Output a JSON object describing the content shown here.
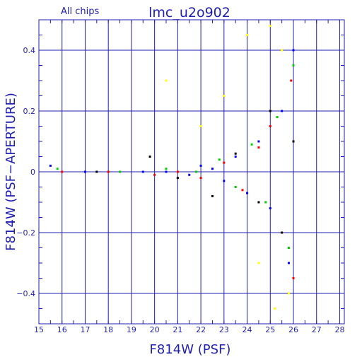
{
  "header": {
    "left_label": "All chips",
    "title": "lmc_u2o902"
  },
  "chart_data": {
    "type": "scatter",
    "title": "lmc_u2o902",
    "subtitle": "All chips",
    "xlabel": "F814W (PSF)",
    "ylabel": "F814W (PSF−APERTURE)",
    "xlim": [
      15,
      28.2
    ],
    "ylim": [
      -0.5,
      0.5
    ],
    "x_ticks": [
      15,
      16,
      17,
      18,
      19,
      20,
      21,
      22,
      23,
      24,
      25,
      26,
      27,
      28
    ],
    "y_ticks": [
      0.4,
      0.2,
      0,
      -0.2,
      -0.4
    ],
    "y_tick_labels": [
      "0.4",
      "0.2",
      "0",
      "−0.2",
      "−0.4"
    ],
    "grid": true,
    "colors": {
      "axis": "#1f1fb0",
      "series": [
        "#0000ff",
        "#ff0000",
        "#00cc00",
        "#ffff00",
        "#000000"
      ]
    },
    "series": [
      {
        "color": "#0000ff",
        "values": [
          [
            15.5,
            0.02
          ],
          [
            17.0,
            0.0
          ],
          [
            19.5,
            0.0
          ],
          [
            20.5,
            0.0
          ],
          [
            21.5,
            -0.01
          ],
          [
            22.0,
            0.02
          ],
          [
            22.5,
            0.01
          ],
          [
            23.0,
            -0.03
          ],
          [
            23.5,
            0.05
          ],
          [
            24.0,
            -0.07
          ],
          [
            24.5,
            0.1
          ],
          [
            25.0,
            -0.12
          ],
          [
            25.5,
            0.2
          ],
          [
            25.8,
            -0.3
          ],
          [
            26.0,
            0.4
          ]
        ]
      },
      {
        "color": "#ff0000",
        "values": [
          [
            16.0,
            0.0
          ],
          [
            18.0,
            0.0
          ],
          [
            20.0,
            -0.01
          ],
          [
            21.0,
            0.0
          ],
          [
            22.0,
            -0.02
          ],
          [
            23.0,
            0.03
          ],
          [
            23.8,
            -0.06
          ],
          [
            24.5,
            0.08
          ],
          [
            25.0,
            0.15
          ],
          [
            25.5,
            -0.2
          ],
          [
            25.9,
            0.3
          ],
          [
            26.0,
            -0.35
          ]
        ]
      },
      {
        "color": "#00cc00",
        "values": [
          [
            15.8,
            0.01
          ],
          [
            18.5,
            0.0
          ],
          [
            20.5,
            0.01
          ],
          [
            21.8,
            0.0
          ],
          [
            22.8,
            0.04
          ],
          [
            23.5,
            -0.05
          ],
          [
            24.2,
            0.09
          ],
          [
            24.8,
            -0.1
          ],
          [
            25.3,
            0.18
          ],
          [
            25.8,
            -0.25
          ],
          [
            26.0,
            0.35
          ]
        ]
      },
      {
        "color": "#ffff00",
        "values": [
          [
            20.5,
            0.3
          ],
          [
            22.0,
            0.15
          ],
          [
            23.0,
            0.25
          ],
          [
            24.0,
            0.45
          ],
          [
            24.5,
            -0.3
          ],
          [
            25.0,
            0.48
          ],
          [
            25.2,
            -0.45
          ],
          [
            25.5,
            0.4
          ],
          [
            25.8,
            -0.4
          ]
        ]
      },
      {
        "color": "#000000",
        "values": [
          [
            17.5,
            0.0
          ],
          [
            19.8,
            0.05
          ],
          [
            21.0,
            -0.02
          ],
          [
            22.5,
            -0.08
          ],
          [
            23.5,
            0.06
          ],
          [
            24.5,
            -0.1
          ],
          [
            25.0,
            0.2
          ],
          [
            25.5,
            -0.2
          ],
          [
            26.0,
            0.1
          ]
        ]
      }
    ]
  }
}
